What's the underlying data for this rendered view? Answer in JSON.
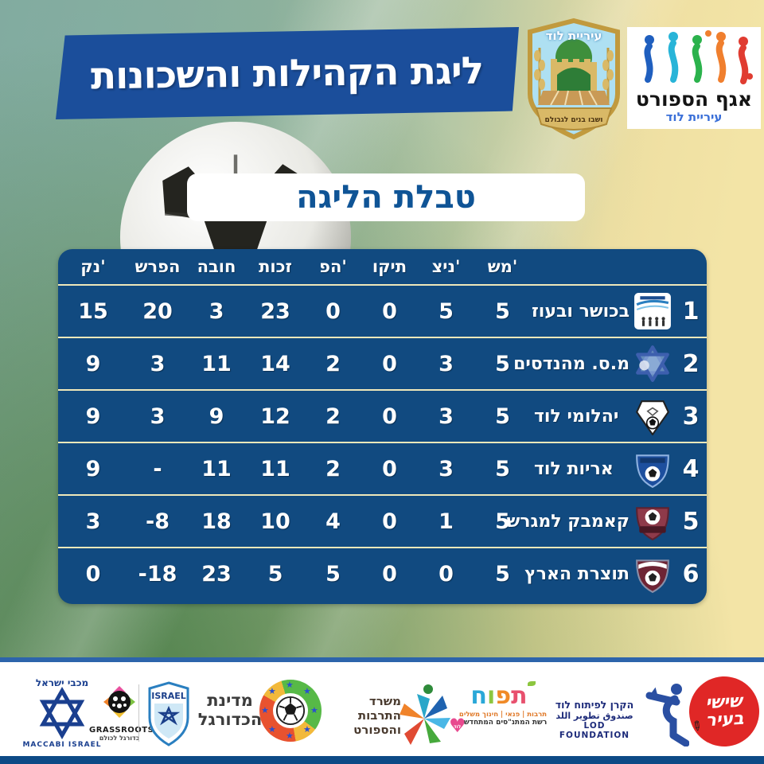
{
  "header": {
    "banner_title": "ליגת הקהילות והשכונות",
    "city_emblem": {
      "top_text": "עיריית לוד",
      "bottom_text": "ושבו בנים לגבולם"
    },
    "sports_dept": {
      "title": "אגף הספורט",
      "subtitle": "עיריית לוד"
    }
  },
  "subtitle_box": {
    "text": "טבלת הליגה"
  },
  "table": {
    "headers": {
      "played": "מש'",
      "wins": "ניצ'",
      "draws": "תיקו",
      "losses": "הפ'",
      "goals_for": "זכות",
      "goals_against": "חובה",
      "diff": "הפרש",
      "points": "נק'"
    },
    "rows": [
      {
        "pos": "1",
        "team": "בכושר ובעוז",
        "played": "5",
        "wins": "5",
        "draws": "0",
        "losses": "0",
        "goals_for": "23",
        "goals_against": "3",
        "diff": "20",
        "points": "15",
        "logo_style": "bekosher"
      },
      {
        "pos": "2",
        "team": "מ.ס. מהנדסים",
        "played": "5",
        "wins": "3",
        "draws": "0",
        "losses": "2",
        "goals_for": "14",
        "goals_against": "11",
        "diff": "3",
        "points": "9",
        "logo_style": "engineers"
      },
      {
        "pos": "3",
        "team": "יהלומי לוד",
        "played": "5",
        "wins": "3",
        "draws": "0",
        "losses": "2",
        "goals_for": "12",
        "goals_against": "9",
        "diff": "3",
        "points": "9",
        "logo_style": "diamonds"
      },
      {
        "pos": "4",
        "team": "אריות לוד",
        "played": "5",
        "wins": "3",
        "draws": "0",
        "losses": "2",
        "goals_for": "11",
        "goals_against": "11",
        "diff": "-",
        "points": "9",
        "logo_style": "lions"
      },
      {
        "pos": "5",
        "team": "קאמבק למגרש",
        "played": "5",
        "wins": "1",
        "draws": "0",
        "losses": "4",
        "goals_for": "10",
        "goals_against": "18",
        "diff": "-8",
        "points": "3",
        "logo_style": "comeback"
      },
      {
        "pos": "6",
        "team": "תוצרת הארץ",
        "played": "5",
        "wins": "0",
        "draws": "0",
        "losses": "5",
        "goals_for": "5",
        "goals_against": "23",
        "diff": "-18",
        "points": "0",
        "logo_style": "totzeret"
      }
    ]
  },
  "footer": {
    "sponsors": {
      "maccabi": {
        "top": "מכבי ישראל",
        "bottom": "MACCABI ISRAEL"
      },
      "grassroots": {
        "title": "GRASSROOTS",
        "subtitle": "כדורגל לכולם"
      },
      "israel_fa": {
        "label": "ISRAEL"
      },
      "football_state": {
        "line1": "מדינת",
        "line2": "הכדורגל"
      },
      "ministry": {
        "line1": "משרד",
        "line2": "התרבות",
        "line3": "והספורט"
      },
      "tapuach": {
        "letters": [
          "ת",
          "פ",
          "ו",
          "ח"
        ],
        "tagline": "תרבות | פנאי | חינוך משלים",
        "subline": "רשת המתנ\"סים המתחדשת",
        "heart_label": "לוד"
      },
      "lod_foundation": {
        "line1": "הקרן לפיתוח לוד",
        "line2": "صندوق تطوير اللد",
        "line3": "LOD FOUNDATION"
      },
      "shishi_bair": {
        "line1": "שישי",
        "line2": "בעיר"
      }
    }
  },
  "colors": {
    "banner_blue": "#1b4e9b",
    "table_blue": "#114a80",
    "row_separator": "#efe8ba",
    "background_yellow": "#f3e4a6",
    "subtitle_blue": "#0f5496",
    "footer_bar_blue": "#0d4a86",
    "shishi_red": "#e02726",
    "tapuach_letter_colors": [
      "#e8506e",
      "#f08a27",
      "#8cc63f",
      "#2aa8d8"
    ]
  }
}
